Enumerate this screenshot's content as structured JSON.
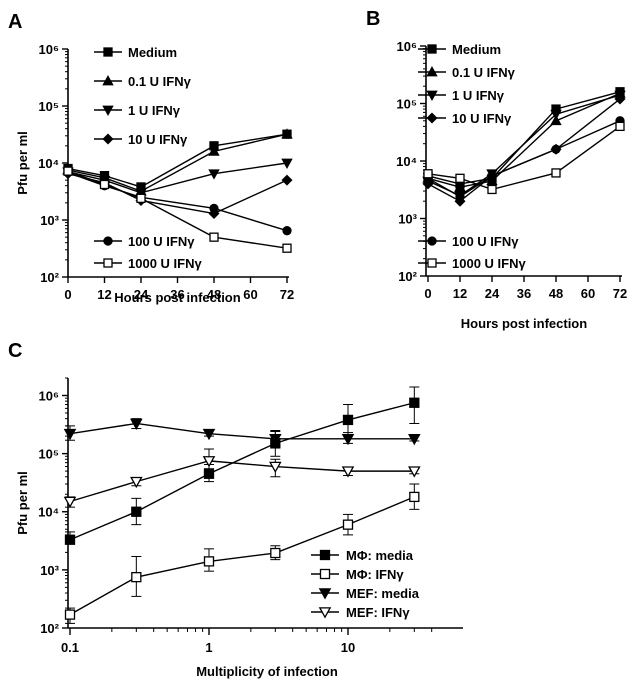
{
  "chart_data": [
    {
      "panel": "A",
      "type": "line",
      "xlabel": "Hours post infection",
      "ylabel": "Pfu per ml",
      "x_ticks": [
        "0",
        "12",
        "24",
        "36",
        "48",
        "60",
        "72"
      ],
      "y_ticks": [
        "10²",
        "10³",
        "10⁴",
        "10⁵",
        "10⁶"
      ],
      "xlim": [
        0,
        72
      ],
      "ylim": [
        100,
        1000000
      ],
      "yscale": "log",
      "series": [
        {
          "name": "Medium",
          "marker": "square-filled",
          "x": [
            0,
            12,
            24,
            48,
            72
          ],
          "y": [
            8000,
            6000,
            3800,
            20000,
            32000
          ]
        },
        {
          "name": "0.1 U IFNγ",
          "marker": "triangle-up-filled",
          "x": [
            0,
            12,
            24,
            48,
            72
          ],
          "y": [
            7500,
            5500,
            3200,
            16000,
            32000
          ]
        },
        {
          "name": "1 U IFNγ",
          "marker": "triangle-down-filled",
          "x": [
            0,
            12,
            24,
            48,
            72
          ],
          "y": [
            7000,
            5000,
            3000,
            6500,
            10000
          ]
        },
        {
          "name": "10 U IFNγ",
          "marker": "diamond-filled",
          "x": [
            0,
            12,
            24,
            48,
            72
          ],
          "y": [
            6500,
            4500,
            2200,
            1300,
            5000
          ]
        },
        {
          "name": "100 U IFNγ",
          "marker": "circle-filled",
          "x": [
            0,
            12,
            24,
            48,
            72
          ],
          "y": [
            6800,
            4000,
            2500,
            1600,
            650
          ]
        },
        {
          "name": "1000 U IFNγ",
          "marker": "square-open",
          "x": [
            0,
            12,
            24,
            48,
            72
          ],
          "y": [
            7200,
            4200,
            2400,
            500,
            320
          ]
        }
      ]
    },
    {
      "panel": "B",
      "type": "line",
      "xlabel": "Hours post infection",
      "ylabel": "",
      "x_ticks": [
        "0",
        "12",
        "24",
        "36",
        "48",
        "60",
        "72"
      ],
      "y_ticks": [
        "10²",
        "10³",
        "10⁴",
        "10⁵",
        "10⁶"
      ],
      "xlim": [
        0,
        72
      ],
      "ylim": [
        100,
        1000000
      ],
      "yscale": "log",
      "series": [
        {
          "name": "Medium",
          "marker": "square-filled",
          "x": [
            0,
            12,
            24,
            48,
            72
          ],
          "y": [
            5500,
            4000,
            5000,
            80000,
            160000
          ]
        },
        {
          "name": "0.1 U IFNγ",
          "marker": "triangle-up-filled",
          "x": [
            0,
            12,
            24,
            48,
            72
          ],
          "y": [
            5000,
            3500,
            4500,
            50000,
            150000
          ]
        },
        {
          "name": "1 U IFNγ",
          "marker": "triangle-down-filled",
          "x": [
            0,
            12,
            24,
            48,
            72
          ],
          "y": [
            4500,
            2500,
            6000,
            65000,
            140000
          ]
        },
        {
          "name": "10 U IFNγ",
          "marker": "diamond-filled",
          "x": [
            0,
            12,
            24,
            48,
            72
          ],
          "y": [
            4000,
            2000,
            5500,
            16000,
            120000
          ]
        },
        {
          "name": "100 U IFNγ",
          "marker": "circle-filled",
          "x": [
            0,
            12,
            24,
            48,
            72
          ],
          "y": [
            5000,
            2400,
            5500,
            16000,
            50000
          ]
        },
        {
          "name": "1000 U IFNγ",
          "marker": "square-open",
          "x": [
            0,
            12,
            24,
            48,
            72
          ],
          "y": [
            6000,
            5000,
            3200,
            6200,
            40000
          ]
        }
      ]
    },
    {
      "panel": "C",
      "type": "line",
      "xlabel": "Multiplicity of infection",
      "ylabel": "Pfu per ml",
      "x_ticks": [
        "0.1",
        "1",
        "10"
      ],
      "y_ticks": [
        "10²",
        "10³",
        "10⁴",
        "10⁵",
        "10⁶"
      ],
      "xlim": [
        0.1,
        40
      ],
      "ylim": [
        100,
        2000000
      ],
      "xscale": "log",
      "yscale": "log",
      "series": [
        {
          "name": "MΦ: media",
          "marker": "square-filled",
          "x": [
            0.1,
            0.3,
            1,
            3,
            10,
            30
          ],
          "y": [
            3300,
            10000,
            45000,
            150000,
            380000,
            750000
          ],
          "err_lo": [
            2800,
            6000,
            33000,
            90000,
            200000,
            330000
          ],
          "err_hi": [
            4500,
            17000,
            65000,
            250000,
            700000,
            1400000
          ]
        },
        {
          "name": "MΦ: IFNγ",
          "marker": "square-open",
          "x": [
            0.1,
            0.3,
            1,
            3,
            10,
            30
          ],
          "y": [
            170,
            750,
            1400,
            1950,
            6000,
            18000
          ],
          "err_lo": [
            120,
            350,
            950,
            1500,
            4000,
            11000
          ],
          "err_hi": [
            220,
            1700,
            2300,
            2600,
            9000,
            30000
          ]
        },
        {
          "name": "MEF: media",
          "marker": "triangle-down-filled",
          "x": [
            0.1,
            0.3,
            1,
            3,
            10,
            30
          ],
          "y": [
            220000,
            330000,
            220000,
            180000,
            180000,
            180000
          ],
          "err_lo": [
            170000,
            270000,
            200000,
            140000,
            150000,
            165000
          ],
          "err_hi": [
            300000,
            400000,
            250000,
            240000,
            230000,
            200000
          ]
        },
        {
          "name": "MEF: IFNγ",
          "marker": "triangle-down-open",
          "x": [
            0.1,
            0.3,
            1,
            3,
            10,
            30
          ],
          "y": [
            15000,
            33000,
            75000,
            60000,
            50000,
            50000
          ],
          "err_lo": [
            12000,
            28000,
            55000,
            40000,
            42000,
            45000
          ],
          "err_hi": [
            18000,
            38000,
            120000,
            80000,
            58000,
            55000
          ]
        }
      ]
    }
  ]
}
